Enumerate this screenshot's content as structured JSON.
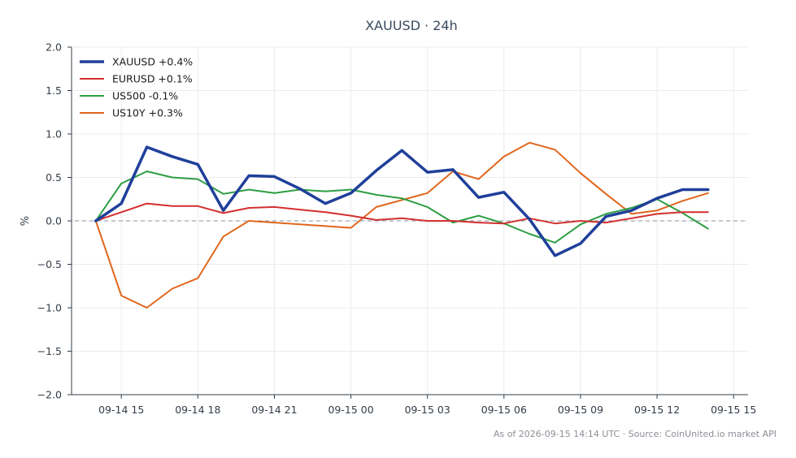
{
  "chart_data": {
    "type": "line",
    "title": "XAUUSD · 24h",
    "ylabel": "%",
    "xlabel": "",
    "ylim": [
      -2.0,
      2.0
    ],
    "yticks": [
      2.0,
      1.5,
      1.0,
      0.5,
      0.0,
      -0.5,
      -1.0,
      -1.5,
      -2.0
    ],
    "ytick_labels": [
      "2.0",
      "1.5",
      "1.0",
      "0.5",
      "0.0",
      "−0.5",
      "−1.0",
      "−1.5",
      "−2.0"
    ],
    "xlim": [
      "2026-09-14 13:03",
      "2026-09-15 15:34"
    ],
    "xticks": [
      "2026-09-14 15:00",
      "2026-09-14 18:00",
      "2026-09-14 21:00",
      "2026-09-15 00:00",
      "2026-09-15 03:00",
      "2026-09-15 06:00",
      "2026-09-15 09:00",
      "2026-09-15 12:00",
      "2026-09-15 15:00"
    ],
    "xtick_labels": [
      "09-14 15",
      "09-14 18",
      "09-14 21",
      "09-15 00",
      "09-15 03",
      "09-15 06",
      "09-15 09",
      "09-15 12",
      "09-15 15"
    ],
    "x": [
      "2026-09-14 14:00",
      "2026-09-14 15:00",
      "2026-09-14 16:00",
      "2026-09-14 17:00",
      "2026-09-14 18:00",
      "2026-09-14 19:00",
      "2026-09-14 20:00",
      "2026-09-14 21:00",
      "2026-09-14 22:00",
      "2026-09-14 23:00",
      "2026-09-15 00:00",
      "2026-09-15 01:00",
      "2026-09-15 02:00",
      "2026-09-15 03:00",
      "2026-09-15 04:00",
      "2026-09-15 05:00",
      "2026-09-15 06:00",
      "2026-09-15 07:00",
      "2026-09-15 08:00",
      "2026-09-15 09:00",
      "2026-09-15 10:00",
      "2026-09-15 11:00",
      "2026-09-15 12:00",
      "2026-09-15 13:00",
      "2026-09-15 14:00"
    ],
    "series": [
      {
        "name": "XAUUSD +0.4%",
        "color": "#1f3f9a",
        "width": 3.5,
        "values": [
          0.0,
          0.2,
          0.85,
          0.74,
          0.65,
          0.12,
          0.52,
          0.51,
          0.37,
          0.2,
          0.32,
          0.58,
          0.81,
          0.56,
          0.59,
          0.27,
          0.33,
          0.02,
          -0.4,
          -0.26,
          0.05,
          0.12,
          0.26,
          0.36,
          0.36
        ]
      },
      {
        "name": "EURUSD +0.1%",
        "color": "#d32f2f",
        "width": 2,
        "values": [
          0.0,
          0.1,
          0.2,
          0.17,
          0.17,
          0.09,
          0.15,
          0.16,
          0.13,
          0.1,
          0.06,
          0.01,
          0.03,
          0.0,
          0.0,
          -0.02,
          -0.03,
          0.03,
          -0.03,
          0.0,
          -0.02,
          0.03,
          0.08,
          0.1,
          0.1
        ]
      },
      {
        "name": "US500 -0.1%",
        "color": "#2e9e44",
        "width": 2,
        "values": [
          0.0,
          0.43,
          0.57,
          0.5,
          0.48,
          0.31,
          0.36,
          0.32,
          0.36,
          0.34,
          0.36,
          0.3,
          0.26,
          0.16,
          -0.02,
          0.06,
          -0.03,
          -0.15,
          -0.25,
          -0.04,
          0.08,
          0.15,
          0.25,
          0.09,
          -0.09
        ]
      },
      {
        "name": "US10Y +0.3%",
        "color": "#e0661c",
        "width": 2,
        "values": [
          0.0,
          -0.86,
          -1.0,
          -0.78,
          -0.66,
          -0.18,
          0.0,
          -0.02,
          -0.04,
          -0.06,
          -0.08,
          0.16,
          0.24,
          0.32,
          0.57,
          0.48,
          0.74,
          0.9,
          0.82,
          0.55,
          0.31,
          0.08,
          0.12,
          0.23,
          0.32
        ]
      }
    ],
    "baseline": 0.0,
    "grid": true,
    "legend_position": "top-left",
    "footer": "As of 2026-09-15 14:14 UTC · Source: CoinUnited.io market API"
  }
}
